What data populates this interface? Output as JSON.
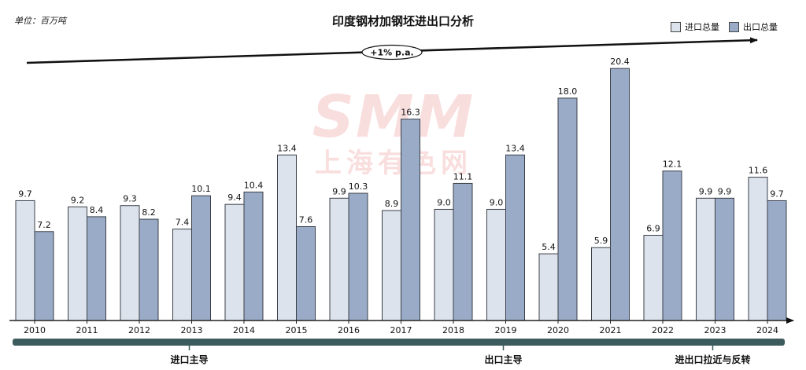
{
  "unit_label": "单位：百万吨",
  "watermark": {
    "logo": "SMM",
    "name": "上海有色网"
  },
  "trend_label": "+1% p.a.",
  "colors": {
    "import": "#dde3ec",
    "export": "#9aabc8",
    "bar_border": "#3a3f47",
    "period_bar": "#3d5a5c",
    "axis": "#222222"
  },
  "chart_data": {
    "type": "bar",
    "title": "印度钢材加钢坯进出口分析",
    "xlabel": "",
    "ylabel": "",
    "ylim": [
      0,
      22
    ],
    "legend_position": "top-right",
    "grid": false,
    "categories": [
      "2010",
      "2011",
      "2012",
      "2013",
      "2014",
      "2015",
      "2016",
      "2017",
      "2018",
      "2019",
      "2020",
      "2021",
      "2022",
      "2023",
      "2024"
    ],
    "series": [
      {
        "name": "进口总量",
        "values": [
          9.7,
          9.2,
          9.3,
          7.4,
          9.4,
          13.4,
          9.9,
          8.9,
          9.0,
          9.0,
          5.4,
          5.9,
          6.9,
          9.9,
          11.6
        ]
      },
      {
        "name": "出口总量",
        "values": [
          7.2,
          8.4,
          8.2,
          10.1,
          10.4,
          7.6,
          10.3,
          16.3,
          11.1,
          13.4,
          18.0,
          20.4,
          12.1,
          9.9,
          9.7
        ]
      }
    ],
    "data_labels": {
      "import": [
        "9.7",
        "9.2",
        "9.3",
        "7.4",
        "9.4",
        "13.4",
        "9.9",
        "8.9",
        "9.0",
        "9.0",
        "5.4",
        "5.9",
        "6.9",
        "9.9",
        "11.6"
      ],
      "export": [
        "7.2",
        "8.4",
        "8.2",
        "10.1",
        "10.4",
        "7.6",
        "10.3",
        "16.3",
        "11.1",
        "13.4",
        "18.0",
        "20.4",
        "12.1",
        "9.9",
        "9.7"
      ]
    },
    "periods": [
      {
        "label": "进口主导",
        "start": 0,
        "end": 6
      },
      {
        "label": "出口主导",
        "start": 6,
        "end": 12
      },
      {
        "label": "进出口拉近与反转",
        "start": 12,
        "end": 14
      }
    ]
  }
}
